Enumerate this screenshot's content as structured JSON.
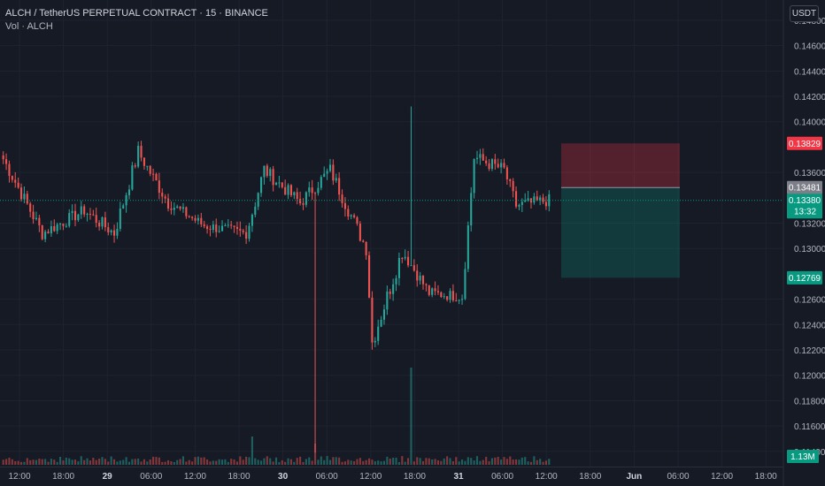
{
  "header": {
    "symbol_line": "ALCH / TetherUS PERPETUAL CONTRACT · 15 · BINANCE",
    "volume_label": "Vol · ALCH"
  },
  "currency_button": "USDT",
  "colors": {
    "background": "#161a25",
    "grid": "#1f2330",
    "up": "#26a69a",
    "down": "#ef5350",
    "stop_zone": "rgba(242,54,69,0.28)",
    "target_zone": "rgba(8,153,129,0.25)",
    "axis_text": "#b2b5be"
  },
  "chart_data": {
    "type": "candlestick",
    "symbol": "ALCH / TetherUS PERPETUAL CONTRACT",
    "interval": "15",
    "exchange": "BINANCE",
    "y_axis": {
      "ylim": [
        0.1128,
        0.1496
      ],
      "tick_labels": [
        "0.14800",
        "0.14600",
        "0.14400",
        "0.14200",
        "0.14000",
        "0.13600",
        "0.13200",
        "0.13000",
        "0.12600",
        "0.12400",
        "0.12200",
        "0.12000",
        "0.11800",
        "0.11600",
        "0.11400"
      ]
    },
    "x_axis": {
      "tick_labels": [
        "12:00",
        "18:00",
        "29",
        "06:00",
        "12:00",
        "18:00",
        "30",
        "06:00",
        "12:00",
        "18:00",
        "31",
        "06:00",
        "12:00",
        "18:00",
        "Jun",
        "06:00",
        "12:00",
        "18:00"
      ],
      "bold_labels": [
        "29",
        "30",
        "31",
        "Jun"
      ]
    },
    "price_tags": [
      {
        "label": "0.13829",
        "value": 0.13829,
        "color": "#f23645"
      },
      {
        "label": "0.13481",
        "value": 0.13481,
        "color": "#7c7f87"
      },
      {
        "label": "0.13380",
        "value": 0.1338,
        "color": "#089981",
        "sub": "13:32"
      },
      {
        "label": "0.12769",
        "value": 0.12769,
        "color": "#089981"
      }
    ],
    "volume_tag": {
      "label": "1.13M",
      "color": "#089981"
    },
    "position": {
      "type": "short",
      "entry": 0.13481,
      "stop": 0.13829,
      "target": 0.12769
    },
    "close_line": 0.1338,
    "series": [
      {
        "name": "seg1",
        "from": 0.1375,
        "to": 0.1312,
        "n": 14,
        "noise": 0.0011
      },
      {
        "name": "seg2",
        "from": 0.1312,
        "to": 0.133,
        "n": 14,
        "noise": 0.001
      },
      {
        "name": "seg3",
        "from": 0.133,
        "to": 0.1312,
        "n": 10,
        "noise": 0.0011
      },
      {
        "name": "seg4",
        "from": 0.1312,
        "to": 0.1376,
        "n": 8,
        "noise": 0.0013
      },
      {
        "name": "seg5",
        "from": 0.1376,
        "to": 0.1336,
        "n": 10,
        "noise": 0.0011
      },
      {
        "name": "seg6",
        "from": 0.1336,
        "to": 0.1318,
        "n": 12,
        "noise": 0.0009
      },
      {
        "name": "seg7",
        "from": 0.1318,
        "to": 0.1312,
        "n": 14,
        "noise": 0.0009
      },
      {
        "name": "seg8",
        "from": 0.1312,
        "to": 0.1362,
        "n": 6,
        "noise": 0.0014
      },
      {
        "name": "seg9",
        "from": 0.1362,
        "to": 0.1336,
        "n": 12,
        "noise": 0.0011
      },
      {
        "name": "seg10",
        "from": 0.1336,
        "to": 0.1362,
        "n": 10,
        "noise": 0.0011
      },
      {
        "name": "seg11",
        "from": 0.1362,
        "to": 0.13,
        "n": 12,
        "noise": 0.0012
      },
      {
        "name": "seg12",
        "from": 0.13,
        "to": 0.1226,
        "n": 2,
        "noise": 0.0008
      },
      {
        "name": "seg13",
        "from": 0.1226,
        "to": 0.1298,
        "n": 10,
        "noise": 0.0014
      },
      {
        "name": "seg14",
        "from": 0.1298,
        "to": 0.1265,
        "n": 9,
        "noise": 0.001
      },
      {
        "name": "seg15",
        "from": 0.1265,
        "to": 0.1262,
        "n": 11,
        "noise": 0.0009
      },
      {
        "name": "seg16",
        "from": 0.1262,
        "to": 0.1372,
        "n": 4,
        "noise": 0.0012
      },
      {
        "name": "seg17",
        "from": 0.1372,
        "to": 0.1362,
        "n": 10,
        "noise": 0.0011
      },
      {
        "name": "seg18",
        "from": 0.1362,
        "to": 0.1334,
        "n": 4,
        "noise": 0.0011
      },
      {
        "name": "seg19",
        "from": 0.1334,
        "to": 0.1338,
        "n": 11,
        "noise": 0.001
      }
    ],
    "spikes": [
      {
        "index": 104,
        "low": 0.1139
      },
      {
        "index": 136,
        "high": 0.1412
      }
    ]
  }
}
